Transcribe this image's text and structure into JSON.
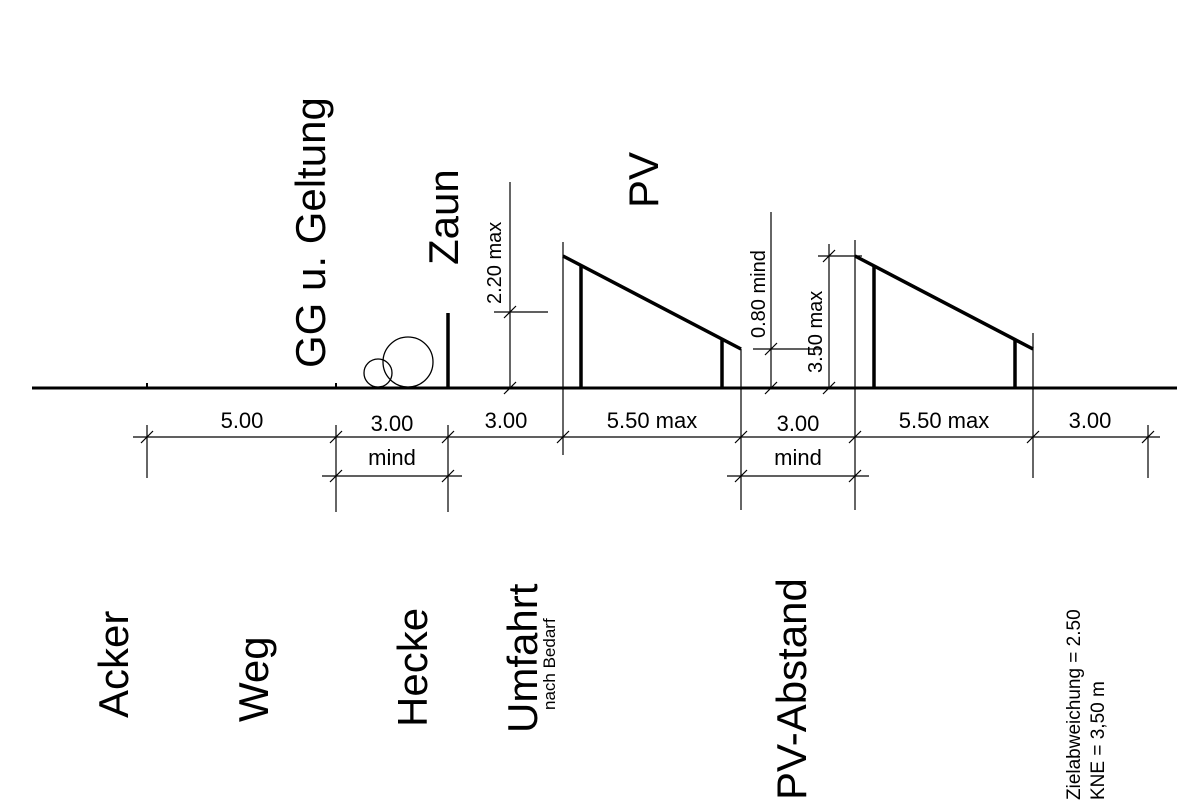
{
  "vertical_labels": {
    "gg_geltung": "GG u. Geltung",
    "zaun": "Zaun",
    "pv": "PV",
    "height_fence_max": "2.20 max",
    "height_gap_min": "0.80 mind",
    "height_pv_max": "3.50 max"
  },
  "dimensions": {
    "weg": "5.00",
    "hecke_value": "3.00",
    "hecke_unit": "mind",
    "umfahrt": "3.00",
    "pv1": "5.50 max",
    "gap_value": "3.00",
    "gap_unit": "mind",
    "pv2": "5.50 max",
    "end": "3.00"
  },
  "zone_labels": {
    "acker": "Acker",
    "weg": "Weg",
    "hecke": "Hecke",
    "umfahrt": "Umfahrt",
    "umfahrt_note": "nach Bedarf",
    "pv_abstand": "PV-Abstand",
    "zielabweichung": "Zielabweichung = 2.50",
    "kne": "KNE = 3,50 m"
  }
}
